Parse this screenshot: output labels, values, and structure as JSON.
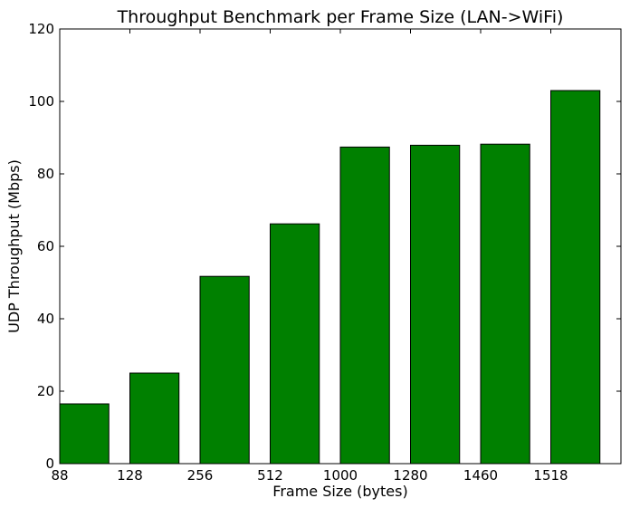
{
  "chart_data": {
    "type": "bar",
    "title": "Throughput Benchmark per Frame Size (LAN->WiFi)",
    "xlabel": "Frame Size (bytes)",
    "ylabel": "UDP Throughput (Mbps)",
    "categories": [
      "88",
      "128",
      "256",
      "512",
      "1000",
      "1280",
      "1460",
      "1518"
    ],
    "values": [
      16.5,
      25,
      51.7,
      66.2,
      87.4,
      87.9,
      88.2,
      103
    ],
    "yticks": [
      0,
      20,
      40,
      60,
      80,
      100,
      120
    ],
    "ylim": [
      0,
      120
    ],
    "bar_color": "#008000",
    "grid": false,
    "legend": "none"
  }
}
